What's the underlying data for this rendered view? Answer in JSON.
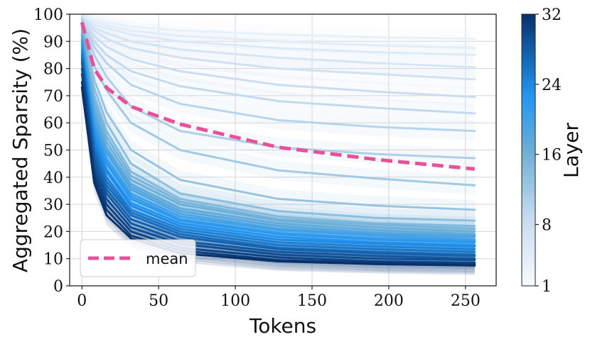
{
  "chart_data": {
    "type": "line",
    "xlabel": "Tokens",
    "ylabel": "Aggregated Sparsity (%)",
    "xlim": [
      -8,
      270
    ],
    "ylim": [
      0,
      100
    ],
    "x_ticks": [
      0,
      50,
      100,
      150,
      200,
      250
    ],
    "y_ticks": [
      0,
      10,
      20,
      30,
      40,
      50,
      60,
      70,
      80,
      90,
      100
    ],
    "grid": true,
    "colorbar": {
      "label": "Layer",
      "ticks": [
        1,
        8,
        16,
        24,
        32
      ],
      "range": [
        1,
        32
      ],
      "cmap": "Blues",
      "colors": [
        "#f7fbff",
        "#c6dbef",
        "#6baed6",
        "#2196f3",
        "#08306b"
      ]
    },
    "legend": {
      "entries": [
        "mean"
      ],
      "position": "lower-left"
    },
    "mean_color": "#e8509a",
    "x": [
      0,
      8,
      16,
      32,
      64,
      128,
      192,
      256
    ],
    "series": [
      {
        "layer": 1,
        "values": [
          99,
          98,
          97,
          95.5,
          94,
          92.5,
          91.5,
          91
        ]
      },
      {
        "layer": 2,
        "values": [
          99,
          97,
          96,
          94,
          92,
          90,
          88.5,
          87.5
        ]
      },
      {
        "layer": 3,
        "values": [
          99,
          96,
          95,
          92.5,
          90,
          87.5,
          86,
          85
        ]
      },
      {
        "layer": 4,
        "values": [
          99,
          95,
          93,
          90,
          87,
          84,
          82,
          80.5
        ]
      },
      {
        "layer": 5,
        "values": [
          99,
          94,
          91,
          87.5,
          84,
          80,
          78,
          76
        ]
      },
      {
        "layer": 6,
        "values": [
          98.5,
          92,
          88,
          83.5,
          79,
          74,
          71.5,
          69.5
        ]
      },
      {
        "layer": 7,
        "values": [
          98.5,
          90,
          85,
          79,
          73.5,
          68,
          65.5,
          63.5
        ]
      },
      {
        "layer": 8,
        "values": [
          98,
          88,
          82,
          74,
          67,
          61,
          58.5,
          57
        ]
      },
      {
        "layer": 9,
        "values": [
          98,
          85,
          77,
          66,
          57,
          51,
          48.5,
          47
        ]
      },
      {
        "layer": 10,
        "values": [
          97,
          81,
          72,
          60,
          50,
          42.5,
          39.5,
          37
        ]
      },
      {
        "layer": 11,
        "values": [
          97,
          76,
          64,
          50,
          39,
          32,
          29.5,
          28
        ]
      },
      {
        "layer": 12,
        "values": [
          96,
          73,
          60,
          45,
          34,
          27.5,
          25,
          24
        ]
      },
      {
        "layer": 13,
        "values": [
          95,
          70,
          57,
          42,
          32,
          25.5,
          23,
          22
        ]
      },
      {
        "layer": 14,
        "values": [
          94,
          68,
          55,
          40.5,
          31,
          24.5,
          22.5,
          21
        ]
      },
      {
        "layer": 15,
        "values": [
          93,
          66,
          53,
          39,
          30,
          24,
          21.5,
          20
        ]
      },
      {
        "layer": 16,
        "values": [
          92,
          64,
          51,
          37.5,
          28.5,
          23,
          20.5,
          19
        ]
      },
      {
        "layer": 17,
        "values": [
          92,
          63,
          50,
          36.5,
          27.5,
          22,
          19.5,
          18.5
        ]
      },
      {
        "layer": 18,
        "values": [
          91,
          62,
          49,
          35.5,
          26.5,
          21,
          19,
          18
        ]
      },
      {
        "layer": 19,
        "values": [
          90,
          60,
          47,
          34,
          25.5,
          20.5,
          18.5,
          17
        ]
      },
      {
        "layer": 20,
        "values": [
          90,
          59,
          46,
          33,
          24.5,
          19.5,
          17.5,
          16.5
        ]
      },
      {
        "layer": 21,
        "values": [
          89,
          58,
          45,
          32,
          24,
          19,
          17,
          16
        ]
      },
      {
        "layer": 22,
        "values": [
          88,
          56,
          43,
          30.5,
          23,
          18,
          16,
          15
        ]
      },
      {
        "layer": 23,
        "values": [
          87,
          55,
          42,
          29.5,
          22,
          17,
          15.5,
          14.5
        ]
      },
      {
        "layer": 24,
        "values": [
          86,
          53,
          40,
          28,
          21,
          16,
          14.5,
          13.5
        ]
      },
      {
        "layer": 25,
        "values": [
          85,
          51,
          38.5,
          27,
          20,
          15,
          13.5,
          12.5
        ]
      },
      {
        "layer": 26,
        "values": [
          84,
          50,
          37,
          26,
          19,
          14,
          12.5,
          11.5
        ]
      },
      {
        "layer": 27,
        "values": [
          83,
          48,
          35.5,
          24.5,
          18,
          13.5,
          12,
          11
        ]
      },
      {
        "layer": 28,
        "values": [
          82,
          46,
          34,
          23,
          16.5,
          12.5,
          11,
          10
        ]
      },
      {
        "layer": 29,
        "values": [
          80,
          44,
          32,
          21.5,
          15.5,
          11.5,
          10,
          9.5
        ]
      },
      {
        "layer": 30,
        "values": [
          78,
          42,
          30,
          20,
          14,
          10.5,
          9,
          8.5
        ]
      },
      {
        "layer": 31,
        "values": [
          75,
          40,
          28,
          18.5,
          13,
          9.5,
          8.5,
          8
        ]
      },
      {
        "layer": 32,
        "values": [
          73,
          38,
          26,
          17.5,
          12,
          9,
          8,
          7.5
        ]
      }
    ],
    "mean": {
      "name": "mean",
      "values": [
        97,
        80,
        73,
        66,
        59.5,
        51,
        46.5,
        43
      ]
    }
  }
}
